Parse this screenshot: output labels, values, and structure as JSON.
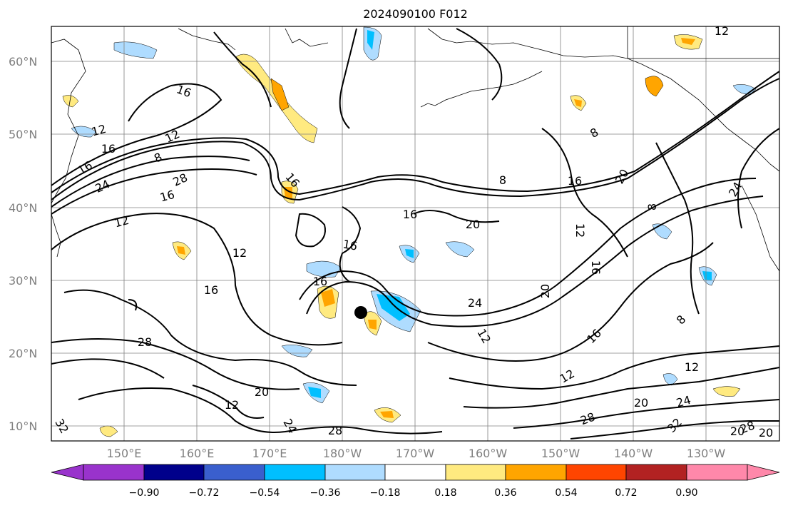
{
  "title": "2024090100 F012",
  "colors": {
    "frame": "#000000",
    "grid": "#808080",
    "coast": "#000000",
    "contour": "#000000",
    "marker": "#000000"
  },
  "lat_labels": [
    "60°N",
    "50°N",
    "40°N",
    "30°N",
    "20°N",
    "10°N"
  ],
  "lon_labels": [
    "150°E",
    "160°E",
    "170°E",
    "180°W",
    "170°W",
    "160°W",
    "150°W",
    "140°W",
    "130°W"
  ],
  "contour_labels": [
    "16",
    "12",
    "16",
    "12",
    "16",
    "8",
    "28",
    "24",
    "16",
    "16",
    "12",
    "12",
    "16",
    "16",
    "28",
    "20",
    "12",
    "16",
    "16",
    "20",
    "24",
    "16",
    "20",
    "24",
    "12",
    "12",
    "16",
    "20",
    "28",
    "24",
    "28",
    "32",
    "12",
    "8",
    "8",
    "16",
    "20",
    "8",
    "8",
    "20",
    "12",
    "24",
    "32",
    "12",
    "28",
    "20"
  ],
  "colorbar": {
    "tick_labels": [
      "−0.90",
      "−0.72",
      "−0.54",
      "−0.36",
      "−0.18",
      "0.18",
      "0.36",
      "0.54",
      "0.72",
      "0.90"
    ],
    "colors": [
      "#9933cc",
      "#00008b",
      "#3a5fcd",
      "#00bfff",
      "#afdcff",
      "#ffffff",
      "#ffea80",
      "#ffa500",
      "#ff4500",
      "#b22222",
      "#ff88aa"
    ]
  }
}
